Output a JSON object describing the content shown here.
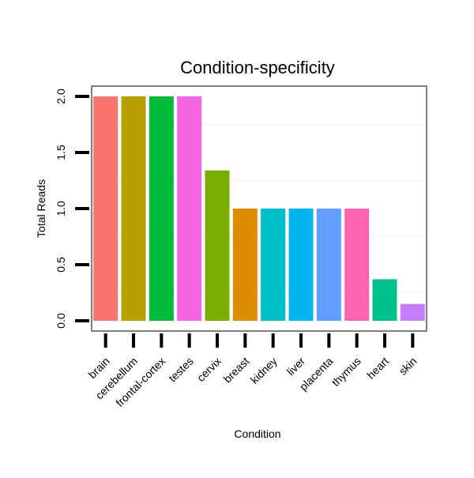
{
  "chart_data": {
    "type": "bar",
    "title": "Condition-specificity",
    "xlabel": "Condition",
    "ylabel": "Total Reads",
    "categories": [
      "brain",
      "cerebellum",
      "frontal-cortex",
      "testes",
      "cervix",
      "breast",
      "kidney",
      "liver",
      "placenta",
      "thymus",
      "heart",
      "skin"
    ],
    "values": [
      2.0,
      2.0,
      2.0,
      2.0,
      1.34,
      1.0,
      1.0,
      1.0,
      1.0,
      1.0,
      0.37,
      0.15
    ],
    "colors": [
      "#F8766D",
      "#B79F00",
      "#00BA38",
      "#F564E3",
      "#7CAE00",
      "#DE8C00",
      "#00BFC4",
      "#00B4F0",
      "#619CFF",
      "#FF64B0",
      "#00C08B",
      "#C77CFF"
    ],
    "yticks": [
      "0.0",
      "0.5",
      "1.0",
      "1.5",
      "2.0"
    ],
    "ylim": [
      0,
      2.12
    ],
    "grid": true,
    "legend": "none"
  }
}
